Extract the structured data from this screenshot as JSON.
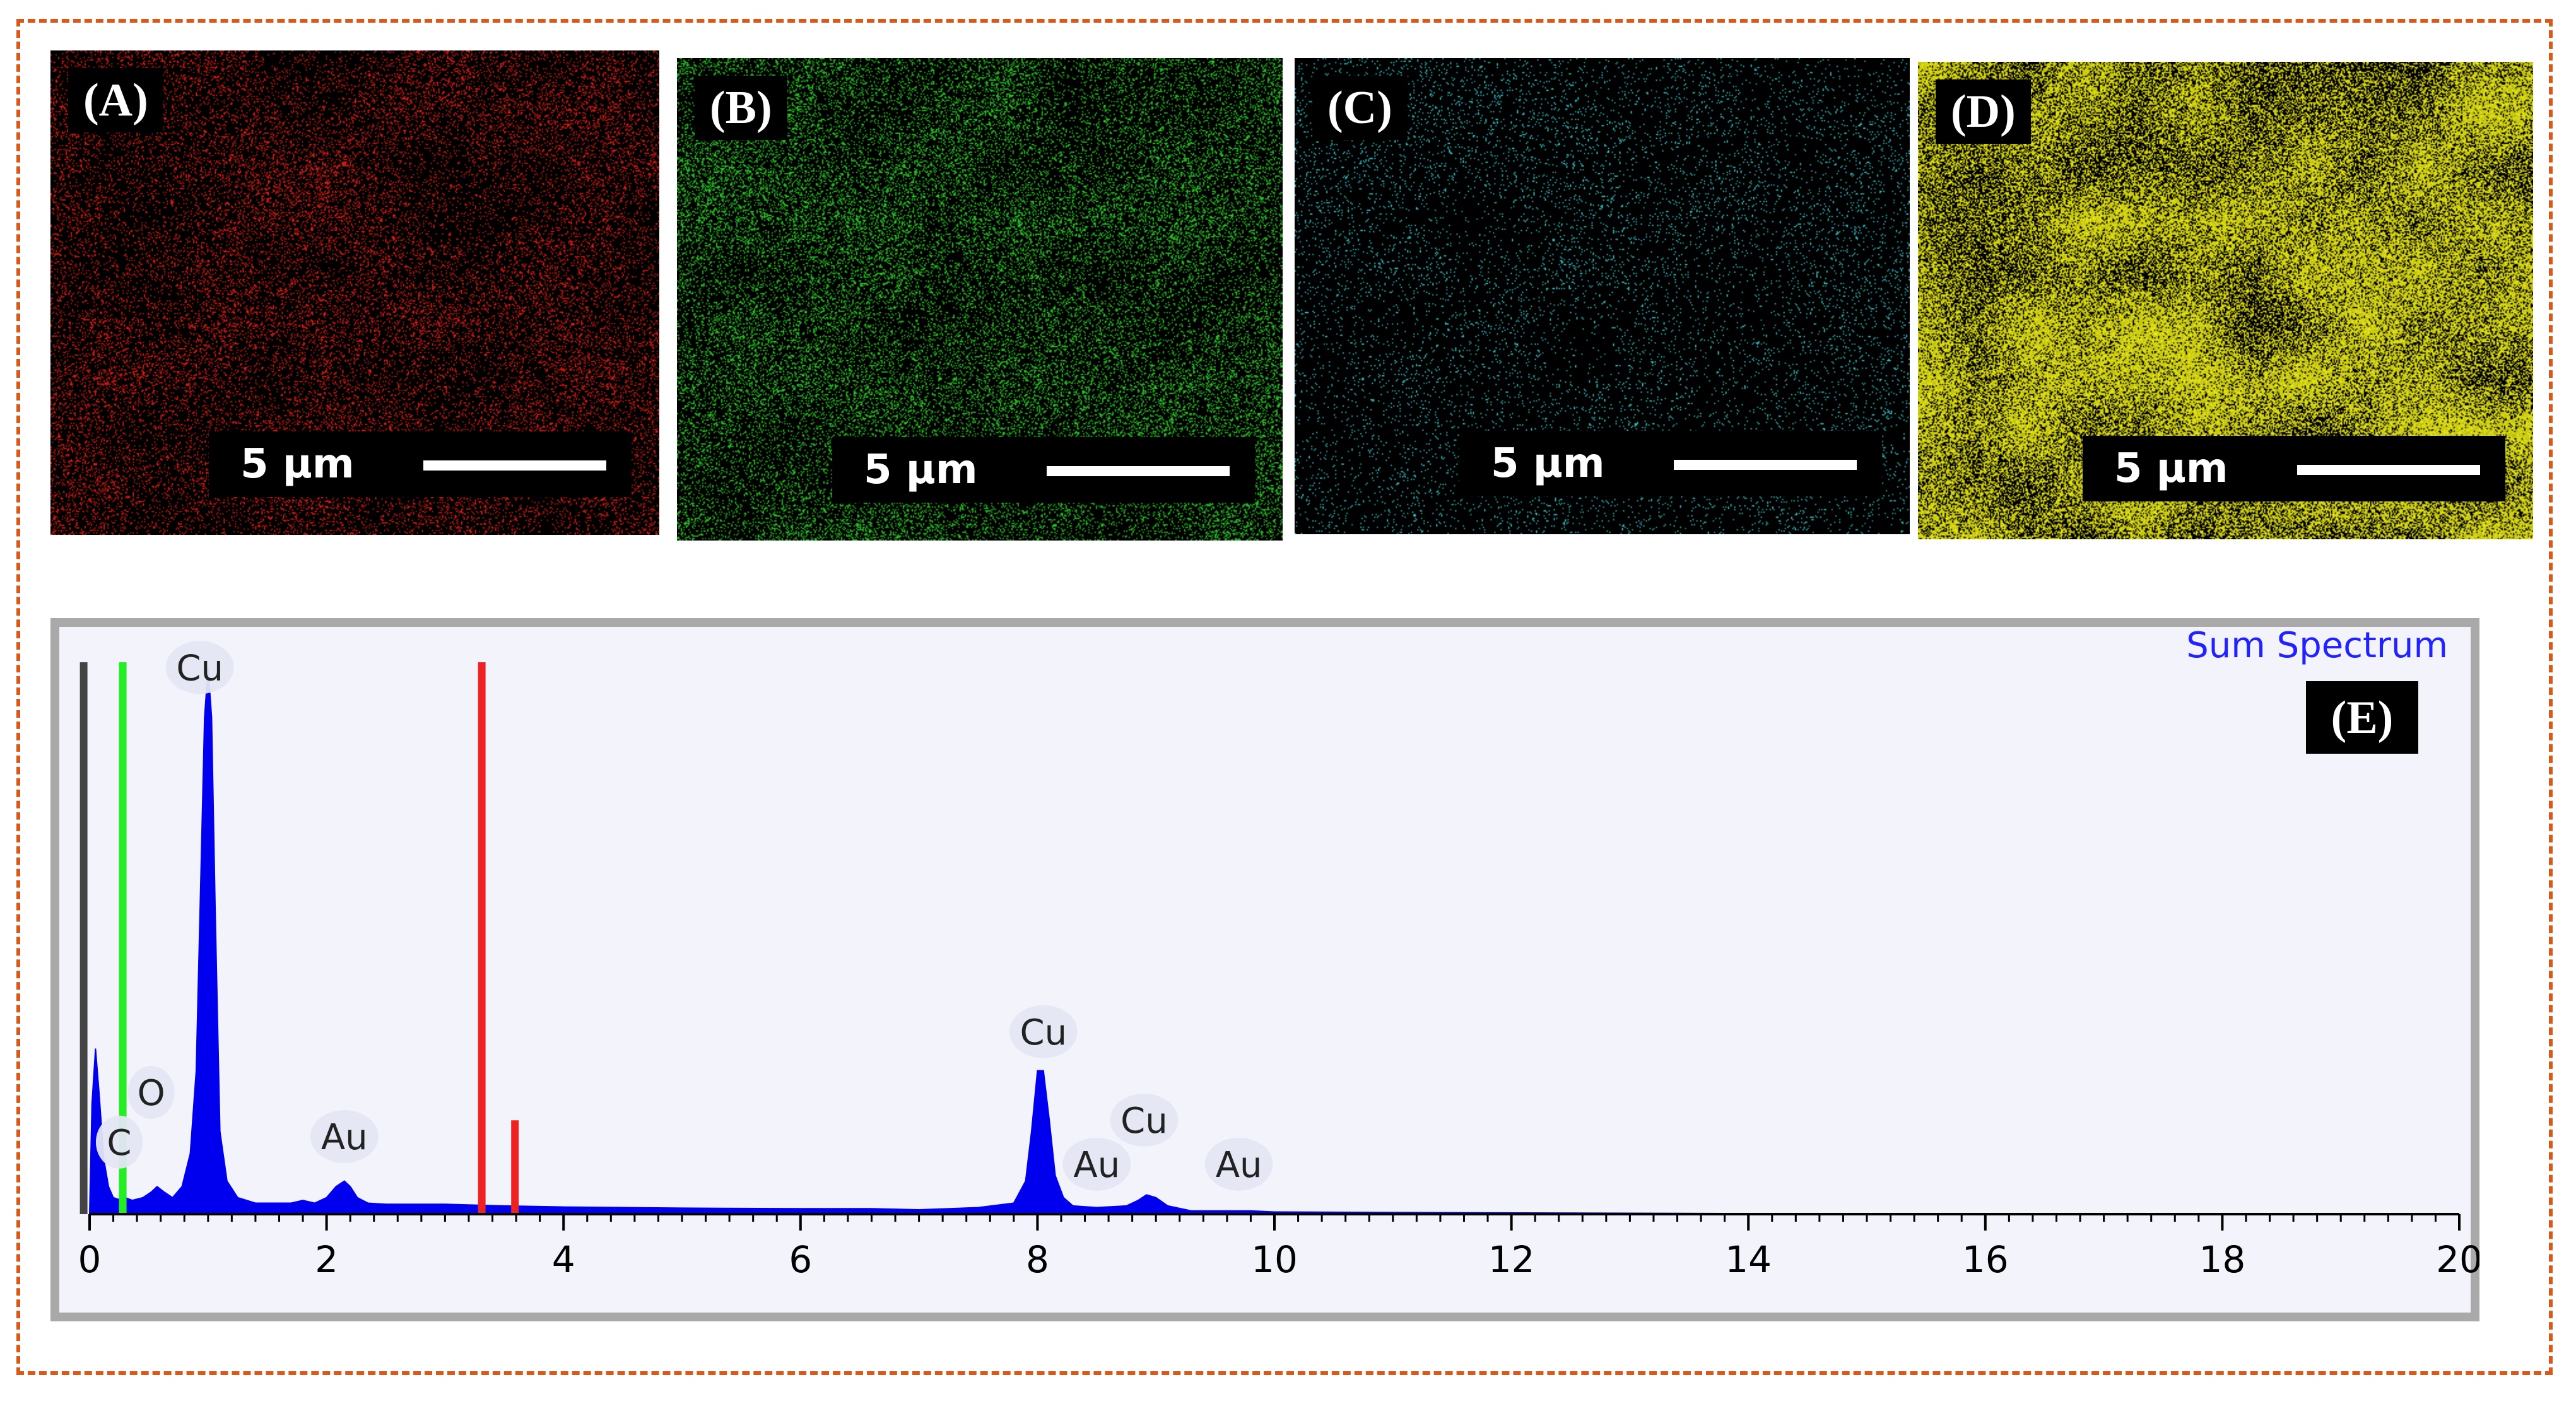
{
  "panels": [
    {
      "label": "(A)",
      "scale": "5 µm",
      "color": "#e3201b",
      "density": 0.17
    },
    {
      "label": "(B)",
      "scale": "5 µm",
      "color": "#2fd12a",
      "density": 0.21
    },
    {
      "label": "(C)",
      "scale": "5 µm",
      "color": "#38d0d4",
      "density": 0.06
    },
    {
      "label": "(D)",
      "scale": "5 µm",
      "color": "#eded18",
      "density": 0.62
    }
  ],
  "spectrum": {
    "legend": "Sum Spectrum",
    "panel_label": "(E)"
  },
  "chart_data": {
    "type": "area",
    "title": "",
    "xlabel": "",
    "ylabel": "",
    "xlim": [
      0,
      20
    ],
    "x_ticks": [
      0,
      2,
      4,
      6,
      8,
      10,
      12,
      14,
      16,
      18,
      20
    ],
    "ylim": [
      0,
      100
    ],
    "series": [
      {
        "name": "Sum Spectrum",
        "color": "#0000ee",
        "x": [
          0,
          0.02,
          0.05,
          0.08,
          0.12,
          0.16,
          0.2,
          0.27,
          0.3,
          0.36,
          0.45,
          0.52,
          0.57,
          0.63,
          0.7,
          0.78,
          0.85,
          0.9,
          0.94,
          0.97,
          1.0,
          1.03,
          1.06,
          1.1,
          1.16,
          1.25,
          1.4,
          1.7,
          1.8,
          1.9,
          2.0,
          2.08,
          2.15,
          2.2,
          2.26,
          2.35,
          2.5,
          3.0,
          3.5,
          4.0,
          5.0,
          6.0,
          6.6,
          7.0,
          7.5,
          7.8,
          7.9,
          7.95,
          8.0,
          8.05,
          8.1,
          8.15,
          8.22,
          8.3,
          8.5,
          8.75,
          8.85,
          8.92,
          9.0,
          9.1,
          9.3,
          9.6,
          9.8,
          10.0,
          11.0,
          14.0,
          20.0
        ],
        "values": [
          0,
          20,
          30,
          22,
          10,
          5,
          3,
          2.5,
          3,
          2.5,
          3,
          4,
          5,
          4,
          3,
          5,
          11,
          26,
          62,
          90,
          99,
          90,
          55,
          15,
          6,
          3,
          2,
          2,
          2.5,
          2,
          3,
          5,
          6,
          5,
          3,
          2,
          1.8,
          1.8,
          1.5,
          1.3,
          1.1,
          1.0,
          1.0,
          0.8,
          1.2,
          2,
          6,
          15,
          26,
          26,
          17,
          7,
          3,
          1.5,
          1.2,
          1.5,
          2.5,
          3.5,
          3,
          1.5,
          0.6,
          0.6,
          0.6,
          0.4,
          0.3,
          0.1,
          0
        ]
      }
    ],
    "markers": [
      {
        "x": -0.05,
        "height": 100,
        "color": "#444444"
      },
      {
        "x": 0.28,
        "height": 100,
        "color": "#22ee22"
      },
      {
        "x": 3.31,
        "height": 100,
        "color": "#ee2222"
      },
      {
        "x": 3.59,
        "height": 17,
        "color": "#ee2222"
      }
    ],
    "peak_labels": [
      {
        "text": "Cu",
        "x": 0.93,
        "y": 97
      },
      {
        "text": "O",
        "x": 0.52,
        "y": 20
      },
      {
        "text": "C",
        "x": 0.25,
        "y": 11
      },
      {
        "text": "Au",
        "x": 2.15,
        "y": 12
      },
      {
        "text": "Cu",
        "x": 8.05,
        "y": 31
      },
      {
        "text": "Au",
        "x": 8.5,
        "y": 7
      },
      {
        "text": "Cu",
        "x": 8.9,
        "y": 15
      },
      {
        "text": "Au",
        "x": 9.7,
        "y": 7
      }
    ]
  }
}
